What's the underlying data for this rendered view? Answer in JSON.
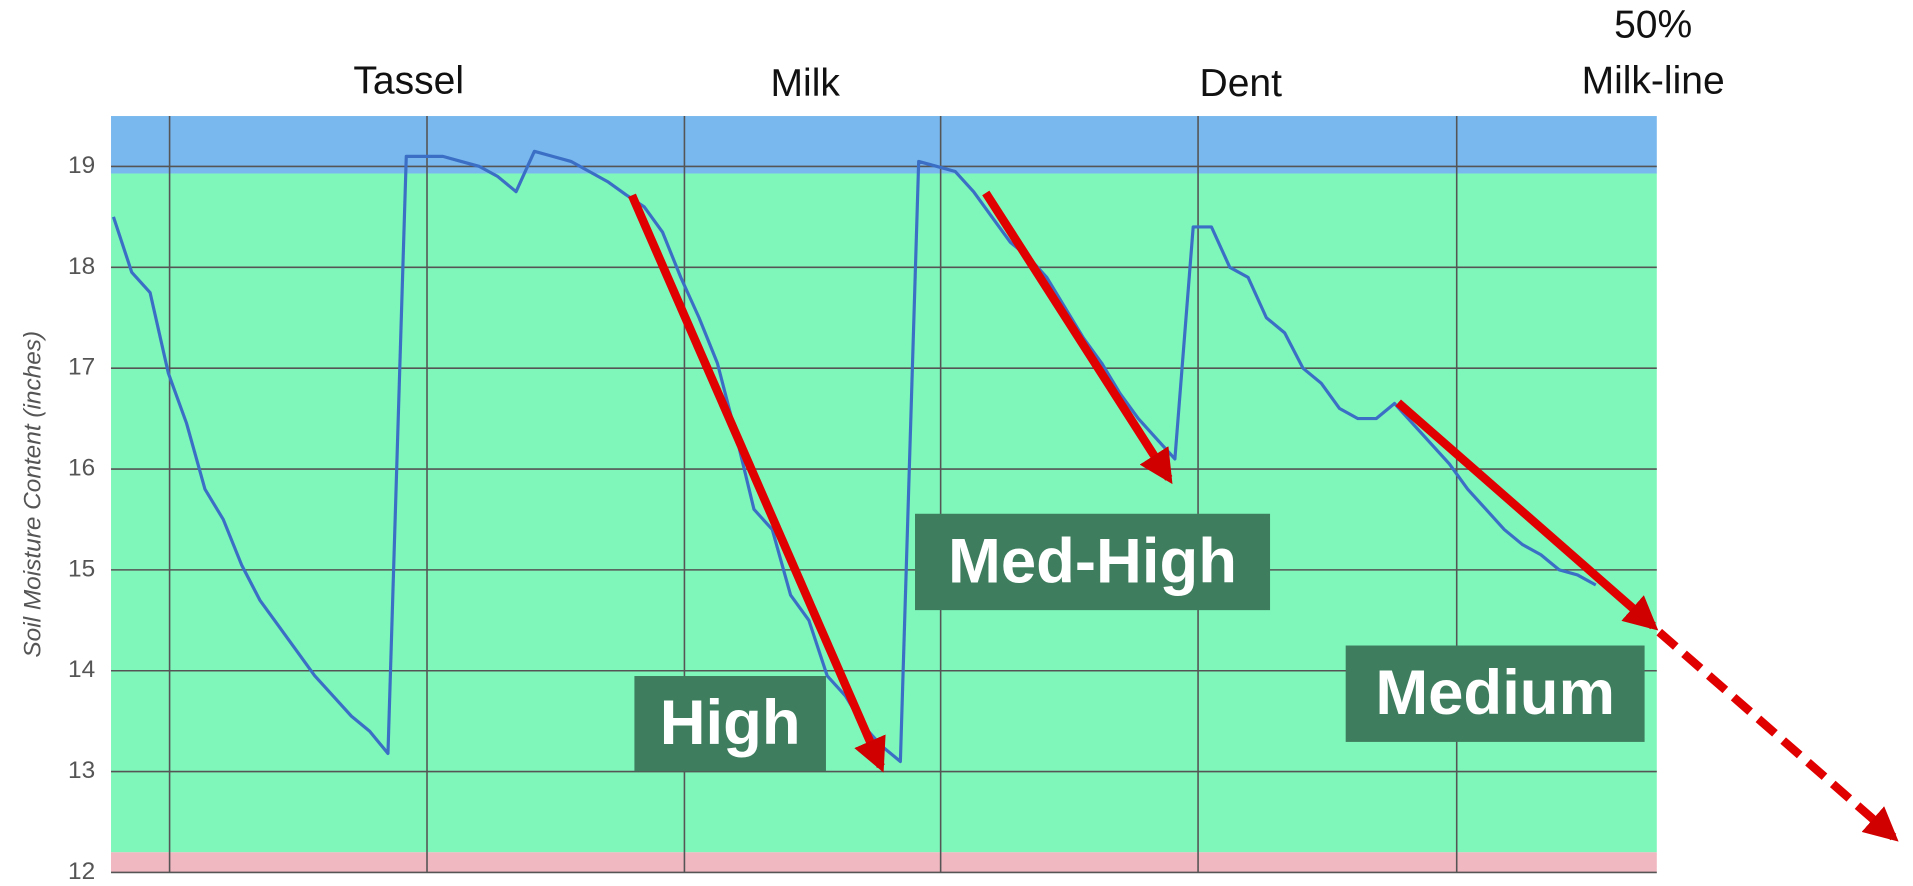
{
  "chart_data": {
    "type": "line",
    "ylabel": "Soil Moisture Content (inches)",
    "ylim": [
      12,
      19.5
    ],
    "yticks": [
      12,
      13,
      14,
      15,
      16,
      17,
      18,
      19
    ],
    "grid": true,
    "bands": [
      {
        "from": 18.93,
        "to": 19.5,
        "color": "#79b8ee"
      },
      {
        "from": 12.2,
        "to": 18.93,
        "color": "#7ff7bb"
      },
      {
        "from": 12,
        "to": 12.2,
        "color": "#f0b8c0"
      }
    ],
    "stage_labels": [
      [
        "Tassel"
      ],
      [
        "Milk"
      ],
      [
        "Dent"
      ],
      [
        "50%",
        "Milk-line"
      ]
    ],
    "rate_labels": [
      "High",
      "Med-High",
      "Medium"
    ],
    "series": [
      {
        "color": "#3b6fc6",
        "values": [
          18.5,
          17.95,
          17.75,
          16.95,
          16.45,
          15.8,
          15.5,
          15.05,
          14.7,
          14.45,
          14.2,
          13.95,
          13.75,
          13.55,
          13.4,
          13.18,
          19.1,
          19.1,
          19.1,
          19.05,
          19.0,
          18.9,
          18.75,
          19.15,
          19.1,
          19.05,
          18.95,
          18.85,
          18.72,
          18.6,
          18.35,
          17.9,
          17.5,
          17.05,
          16.35,
          15.6,
          15.4,
          14.75,
          14.5,
          13.95,
          13.75,
          13.45,
          13.25,
          13.1,
          19.05,
          19.0,
          18.95,
          18.75,
          18.5,
          18.25,
          18.1,
          17.9,
          17.6,
          17.3,
          17.05,
          16.75,
          16.5,
          16.3,
          16.1,
          18.4,
          18.4,
          18.0,
          17.9,
          17.5,
          17.35,
          17.0,
          16.85,
          16.6,
          16.5,
          16.5,
          16.65,
          16.45,
          16.25,
          16.05,
          15.8,
          15.6,
          15.4,
          15.25,
          15.15,
          15.0,
          14.95,
          14.85
        ]
      }
    ]
  }
}
